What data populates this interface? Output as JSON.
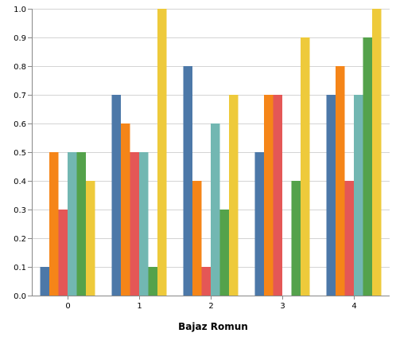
{
  "chart_data": {
    "type": "bar",
    "title": "",
    "xlabel": "Bajaz Romun",
    "ylabel": "",
    "categories": [
      "0",
      "1",
      "2",
      "3",
      "4"
    ],
    "ylim": [
      0,
      1
    ],
    "y_ticks": [
      "0.0",
      "0.1",
      "0.2",
      "0.3",
      "0.4",
      "0.5",
      "0.6",
      "0.7",
      "0.8",
      "0.9",
      "1.0"
    ],
    "grid": true,
    "legend": "none",
    "series": [
      {
        "color": "#4c78a8",
        "values": [
          0.1,
          0.7,
          0.8,
          0.5,
          0.7
        ]
      },
      {
        "color": "#f58518",
        "values": [
          0.5,
          0.6,
          0.4,
          0.7,
          0.8
        ]
      },
      {
        "color": "#e45756",
        "values": [
          0.3,
          0.5,
          0.1,
          0.7,
          0.4
        ]
      },
      {
        "color": "#72b7b2",
        "values": [
          0.5,
          0.5,
          0.6,
          0.0,
          0.7
        ]
      },
      {
        "color": "#54a24b",
        "values": [
          0.5,
          0.1,
          0.3,
          0.4,
          0.9
        ]
      },
      {
        "color": "#eeca3b",
        "values": [
          0.4,
          1.0,
          0.7,
          0.9,
          1.0
        ]
      }
    ]
  }
}
